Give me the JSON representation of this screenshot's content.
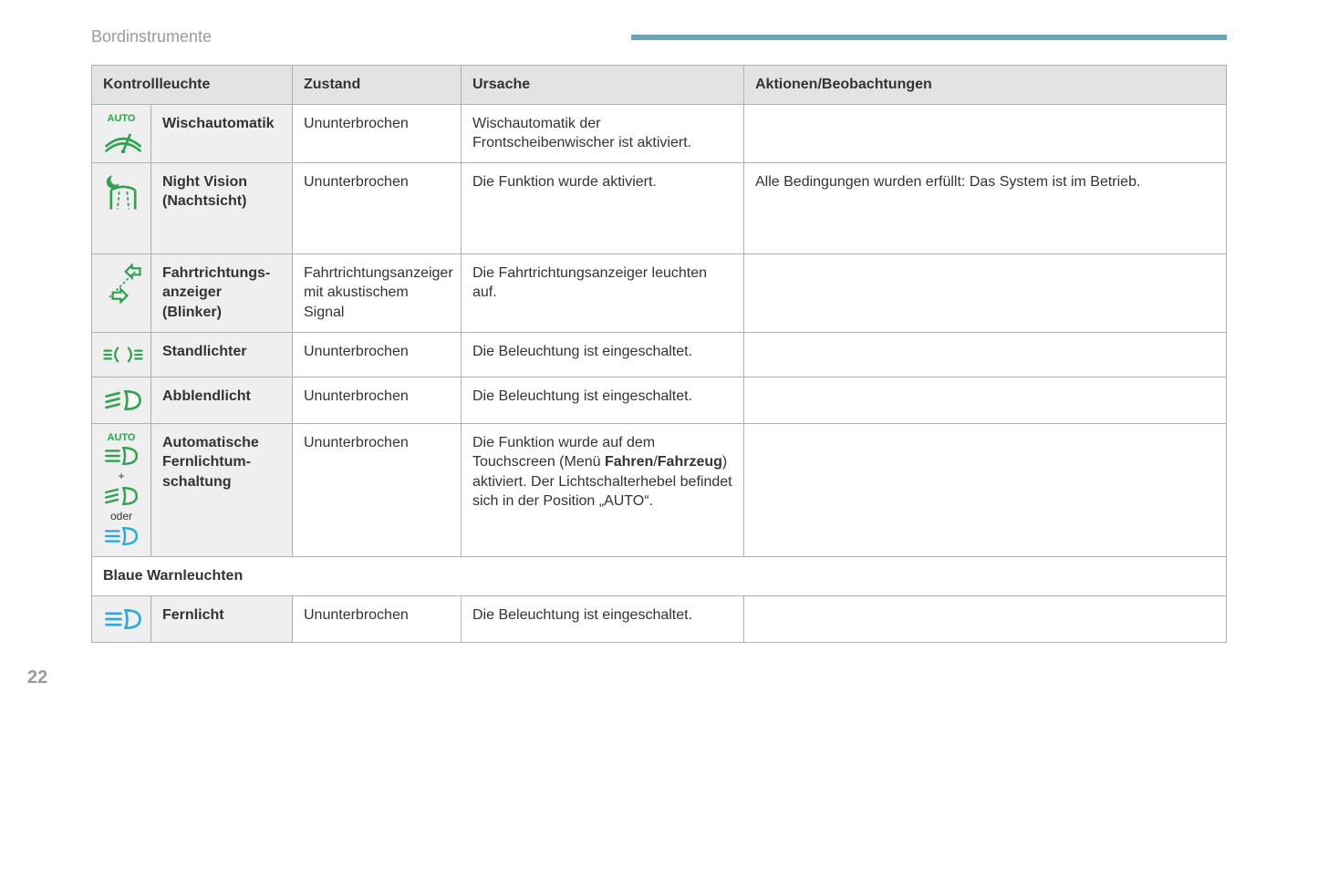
{
  "colors": {
    "header_bar": "#6ba5b5",
    "border": "#b0b0b0",
    "th_bg": "#e3e3e3",
    "icon_col_bg": "#efefef",
    "breadcrumb": "#9b9b9b",
    "icon_green": "#2fa24f",
    "icon_blue": "#29a9e0"
  },
  "breadcrumb": "Bordinstrumente",
  "page_number": "22",
  "columns": {
    "c1": "Kontrollleuchte",
    "c2": "Zustand",
    "c3": "Ursache",
    "c4": "Aktionen/Beobachtungen"
  },
  "rows": [
    {
      "icon": "auto-wiper",
      "name": "Wischautomatik",
      "state": "Ununterbrochen",
      "cause": "Wischautomatik der Frontscheibenwischer ist aktiviert.",
      "action": ""
    },
    {
      "icon": "night-vision",
      "name": "Night Vision (Nachtsicht)",
      "state": "Ununterbrochen",
      "cause": "Die Funktion wurde aktiviert.",
      "action": "Alle Bedingungen wurden erfüllt: Das System ist im Betrieb."
    },
    {
      "icon": "turn-signals",
      "name": "Fahrtrichtungs­anzeiger (Blinker)",
      "state": "Fahrtrichtungsanzeiger mit akustischem Signal",
      "cause": "Die Fahrtrichtungsanzeiger leuchten auf.",
      "action": ""
    },
    {
      "icon": "side-lights",
      "name": "Standlichter",
      "state": "Ununterbrochen",
      "cause": "Die Beleuchtung ist eingeschaltet.",
      "action": ""
    },
    {
      "icon": "low-beam",
      "name": "Abblendlicht",
      "state": "Ununterbrochen",
      "cause": "Die Beleuchtung ist eingeschaltet.",
      "action": ""
    },
    {
      "icon": "auto-high-beam",
      "name": "Automatische Fernlichtum­schaltung",
      "state": "Ununterbrochen",
      "cause_html": "Die Funktion wurde auf dem Touchscreen (Menü <b>Fahren</b>/<b>Fahrzeug</b>) aktiviert. Der Lichtschalterhebel befindet sich in der Position „AUTO“.",
      "action": "",
      "extra_labels": {
        "plus": "+",
        "oder": "oder"
      }
    }
  ],
  "section_header": "Blaue Warnleuchten",
  "blue_rows": [
    {
      "icon": "high-beam-blue",
      "name": "Fernlicht",
      "state": "Ununterbrochen",
      "cause": "Die Beleuchtung ist eingeschaltet.",
      "action": ""
    }
  ]
}
